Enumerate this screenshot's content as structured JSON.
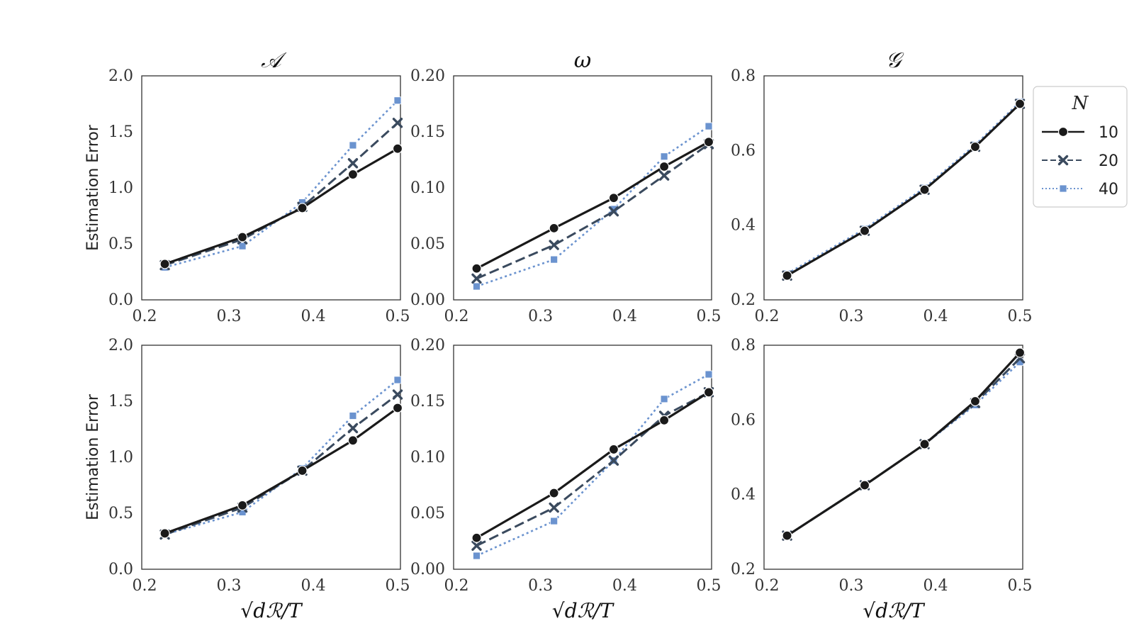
{
  "chart_data": [
    {
      "type": "line",
      "title": "𝒜",
      "ylabel": "Estimation Error",
      "xlabel": "",
      "ylim": [
        0,
        2.0
      ],
      "xlim": [
        0.2,
        0.5
      ],
      "yticks": [
        "0.0",
        "0.5",
        "1.0",
        "1.5",
        "2.0"
      ],
      "xticks": [
        "0.2",
        "0.3",
        "0.4",
        "0.5"
      ],
      "x": [
        0.224,
        0.316,
        0.387,
        0.447,
        0.5
      ],
      "series": [
        {
          "name": "10",
          "values": [
            0.32,
            0.56,
            0.82,
            1.12,
            1.35
          ]
        },
        {
          "name": "20",
          "values": [
            0.31,
            0.54,
            0.83,
            1.22,
            1.58
          ]
        },
        {
          "name": "40",
          "values": [
            0.29,
            0.48,
            0.87,
            1.38,
            1.78
          ]
        }
      ]
    },
    {
      "type": "line",
      "title": "ω",
      "ylabel": "",
      "xlabel": "",
      "ylim": [
        0,
        0.2
      ],
      "xlim": [
        0.2,
        0.5
      ],
      "yticks": [
        "0.00",
        "0.05",
        "0.10",
        "0.15",
        "0.20"
      ],
      "xticks": [
        "0.2",
        "0.3",
        "0.4",
        "0.5"
      ],
      "x": [
        0.224,
        0.316,
        0.387,
        0.447,
        0.5
      ],
      "series": [
        {
          "name": "10",
          "values": [
            0.028,
            0.064,
            0.091,
            0.119,
            0.141
          ]
        },
        {
          "name": "20",
          "values": [
            0.019,
            0.049,
            0.079,
            0.111,
            0.139
          ]
        },
        {
          "name": "40",
          "values": [
            0.012,
            0.036,
            0.081,
            0.128,
            0.155
          ]
        }
      ]
    },
    {
      "type": "line",
      "title": "𝒢",
      "ylabel": "",
      "xlabel": "",
      "ylim": [
        0.2,
        0.8
      ],
      "xlim": [
        0.2,
        0.5
      ],
      "yticks": [
        "0.2",
        "0.4",
        "0.6",
        "0.8"
      ],
      "xticks": [
        "0.2",
        "0.3",
        "0.4",
        "0.5"
      ],
      "x": [
        0.224,
        0.316,
        0.387,
        0.447,
        0.5
      ],
      "series": [
        {
          "name": "10",
          "values": [
            0.265,
            0.385,
            0.495,
            0.61,
            0.725
          ]
        },
        {
          "name": "20",
          "values": [
            0.265,
            0.385,
            0.495,
            0.61,
            0.725
          ]
        },
        {
          "name": "40",
          "values": [
            0.27,
            0.39,
            0.5,
            0.615,
            0.73
          ]
        }
      ]
    },
    {
      "type": "line",
      "title": "",
      "ylabel": "Estimation Error",
      "xlabel": "√dℛ/T",
      "ylim": [
        0,
        2.0
      ],
      "xlim": [
        0.2,
        0.5
      ],
      "yticks": [
        "0.0",
        "0.5",
        "1.0",
        "1.5",
        "2.0"
      ],
      "xticks": [
        "0.2",
        "0.3",
        "0.4",
        "0.5"
      ],
      "x": [
        0.224,
        0.316,
        0.387,
        0.447,
        0.5
      ],
      "series": [
        {
          "name": "10",
          "values": [
            0.32,
            0.57,
            0.88,
            1.15,
            1.44
          ]
        },
        {
          "name": "20",
          "values": [
            0.31,
            0.55,
            0.88,
            1.26,
            1.56
          ]
        },
        {
          "name": "40",
          "values": [
            0.31,
            0.51,
            0.9,
            1.37,
            1.69
          ]
        }
      ]
    },
    {
      "type": "line",
      "title": "",
      "ylabel": "",
      "xlabel": "√dℛ/T",
      "ylim": [
        0,
        0.2
      ],
      "xlim": [
        0.2,
        0.5
      ],
      "yticks": [
        "0.00",
        "0.05",
        "0.10",
        "0.15",
        "0.20"
      ],
      "xticks": [
        "0.2",
        "0.3",
        "0.4",
        "0.5"
      ],
      "x": [
        0.224,
        0.316,
        0.387,
        0.447,
        0.5
      ],
      "series": [
        {
          "name": "10",
          "values": [
            0.028,
            0.068,
            0.107,
            0.133,
            0.158
          ]
        },
        {
          "name": "20",
          "values": [
            0.021,
            0.055,
            0.097,
            0.137,
            0.158
          ]
        },
        {
          "name": "40",
          "values": [
            0.012,
            0.043,
            0.097,
            0.152,
            0.174
          ]
        }
      ]
    },
    {
      "type": "line",
      "title": "",
      "ylabel": "",
      "xlabel": "√dℛ/T",
      "ylim": [
        0.2,
        0.8
      ],
      "xlim": [
        0.2,
        0.5
      ],
      "yticks": [
        "0.2",
        "0.4",
        "0.6",
        "0.8"
      ],
      "xticks": [
        "0.2",
        "0.3",
        "0.4",
        "0.5"
      ],
      "x": [
        0.224,
        0.316,
        0.387,
        0.447,
        0.5
      ],
      "series": [
        {
          "name": "10",
          "values": [
            0.29,
            0.425,
            0.535,
            0.65,
            0.78
          ]
        },
        {
          "name": "20",
          "values": [
            0.29,
            0.425,
            0.535,
            0.645,
            0.765
          ]
        },
        {
          "name": "40",
          "values": [
            0.29,
            0.425,
            0.535,
            0.64,
            0.755
          ]
        }
      ]
    }
  ],
  "legend": {
    "title": "N",
    "entries": [
      {
        "label": "10",
        "color": "#1a1a1a",
        "dash": "solid",
        "marker": "circle"
      },
      {
        "label": "20",
        "color": "#3a4a5e",
        "dash": "dashed",
        "marker": "x"
      },
      {
        "label": "40",
        "color": "#6b93cf",
        "dash": "dotted",
        "marker": "square"
      }
    ]
  }
}
